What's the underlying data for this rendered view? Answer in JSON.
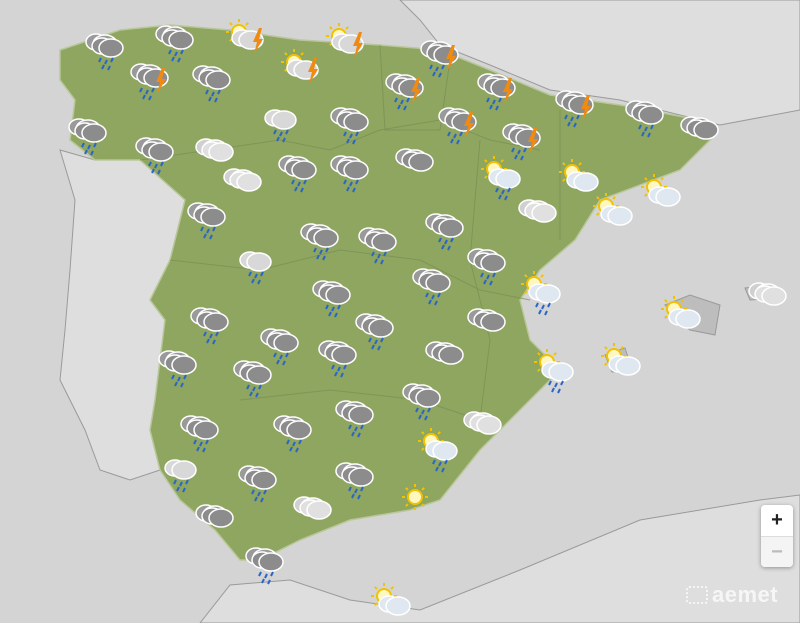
{
  "map": {
    "colors": {
      "sea": "#d4d4d4",
      "land": "#8ea65f",
      "neighbor": "#dedede",
      "border": "#9a9a9a"
    },
    "forecast_icons": [
      "rain",
      "rain",
      "sun-storm",
      "sun-storm",
      "storm",
      "storm",
      "rain",
      "sun-storm",
      "storm",
      "storm",
      "storm",
      "rain",
      "cloud",
      "rain",
      "rain",
      "cloud-light",
      "lightrain",
      "rain",
      "storm",
      "storm",
      "cloud-light",
      "rain",
      "rain",
      "cloud",
      "sun-rain",
      "sun-cloud",
      "sun-cloud",
      "sun-cloud",
      "cloud-light",
      "rain",
      "rain",
      "rain",
      "rain",
      "lightrain",
      "rain",
      "rain",
      "rain",
      "sun-rain",
      "rain",
      "rain",
      "cloud",
      "sun-cloud",
      "cloud-light",
      "rain",
      "rain",
      "rain",
      "cloud",
      "rain",
      "sun-rain",
      "sun-cloud",
      "rain",
      "rain",
      "rain",
      "rain",
      "cloud-light",
      "sun-rain",
      "lightrain",
      "rain",
      "rain",
      "cloud-light",
      "sun",
      "cloud",
      "rain",
      "sun-cloud"
    ]
  },
  "controls": {
    "zoom_in": "+",
    "zoom_out": "−"
  },
  "logo": {
    "text": "aemet"
  }
}
